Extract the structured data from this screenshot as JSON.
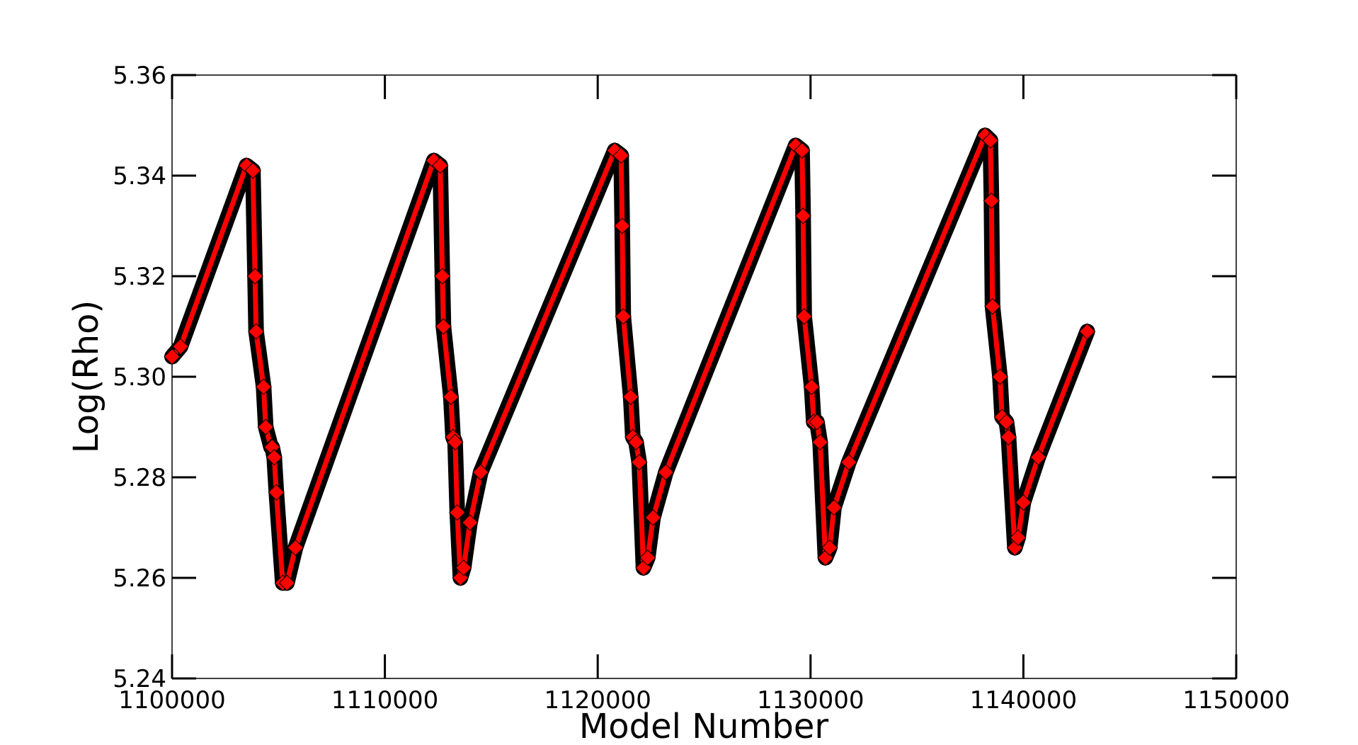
{
  "chart_data": {
    "type": "line",
    "title": "",
    "xlabel": "Model Number",
    "ylabel": "Log(Rho)",
    "xlim": [
      1100000,
      1150000
    ],
    "ylim": [
      5.24,
      5.36
    ],
    "xticks": [
      1100000,
      1110000,
      1120000,
      1130000,
      1140000,
      1150000
    ],
    "xtick_labels": [
      "1100000",
      "1110000",
      "1120000",
      "1130000",
      "1140000",
      "1150000"
    ],
    "yticks": [
      5.24,
      5.26,
      5.28,
      5.3,
      5.32,
      5.34,
      5.36
    ],
    "ytick_labels": [
      "5.24",
      "5.26",
      "5.28",
      "5.30",
      "5.32",
      "5.34",
      "5.36"
    ],
    "grid": false,
    "legend": "none",
    "series": [
      {
        "line_color": "#ff0000",
        "marker_edge_color": "#000000",
        "marker": "diamond",
        "x": [
          1100000,
          1100400,
          1103500,
          1103800,
          1103900,
          1103950,
          1104300,
          1104400,
          1104650,
          1104700,
          1104800,
          1104900,
          1105200,
          1105400,
          1105800,
          1112300,
          1112600,
          1112700,
          1112750,
          1113100,
          1113200,
          1113300,
          1113400,
          1113550,
          1113700,
          1114000,
          1114500,
          1120800,
          1121100,
          1121150,
          1121200,
          1121550,
          1121650,
          1121800,
          1121950,
          1122150,
          1122350,
          1122600,
          1123200,
          1129300,
          1129600,
          1129650,
          1129700,
          1130050,
          1130150,
          1130300,
          1130450,
          1130700,
          1130900,
          1131100,
          1131800,
          1138200,
          1138450,
          1138500,
          1138550,
          1138900,
          1139000,
          1139200,
          1139300,
          1139600,
          1139750,
          1140000,
          1140700,
          1143000
        ],
        "y": [
          5.304,
          5.306,
          5.342,
          5.341,
          5.32,
          5.309,
          5.298,
          5.29,
          5.286,
          5.286,
          5.284,
          5.277,
          5.259,
          5.259,
          5.266,
          5.343,
          5.342,
          5.32,
          5.31,
          5.296,
          5.288,
          5.287,
          5.273,
          5.26,
          5.262,
          5.271,
          5.281,
          5.345,
          5.344,
          5.33,
          5.312,
          5.296,
          5.288,
          5.287,
          5.283,
          5.262,
          5.264,
          5.272,
          5.281,
          5.346,
          5.345,
          5.332,
          5.312,
          5.298,
          5.291,
          5.291,
          5.287,
          5.264,
          5.266,
          5.274,
          5.283,
          5.348,
          5.347,
          5.335,
          5.314,
          5.3,
          5.292,
          5.291,
          5.288,
          5.266,
          5.268,
          5.275,
          5.284,
          5.309
        ]
      }
    ]
  }
}
